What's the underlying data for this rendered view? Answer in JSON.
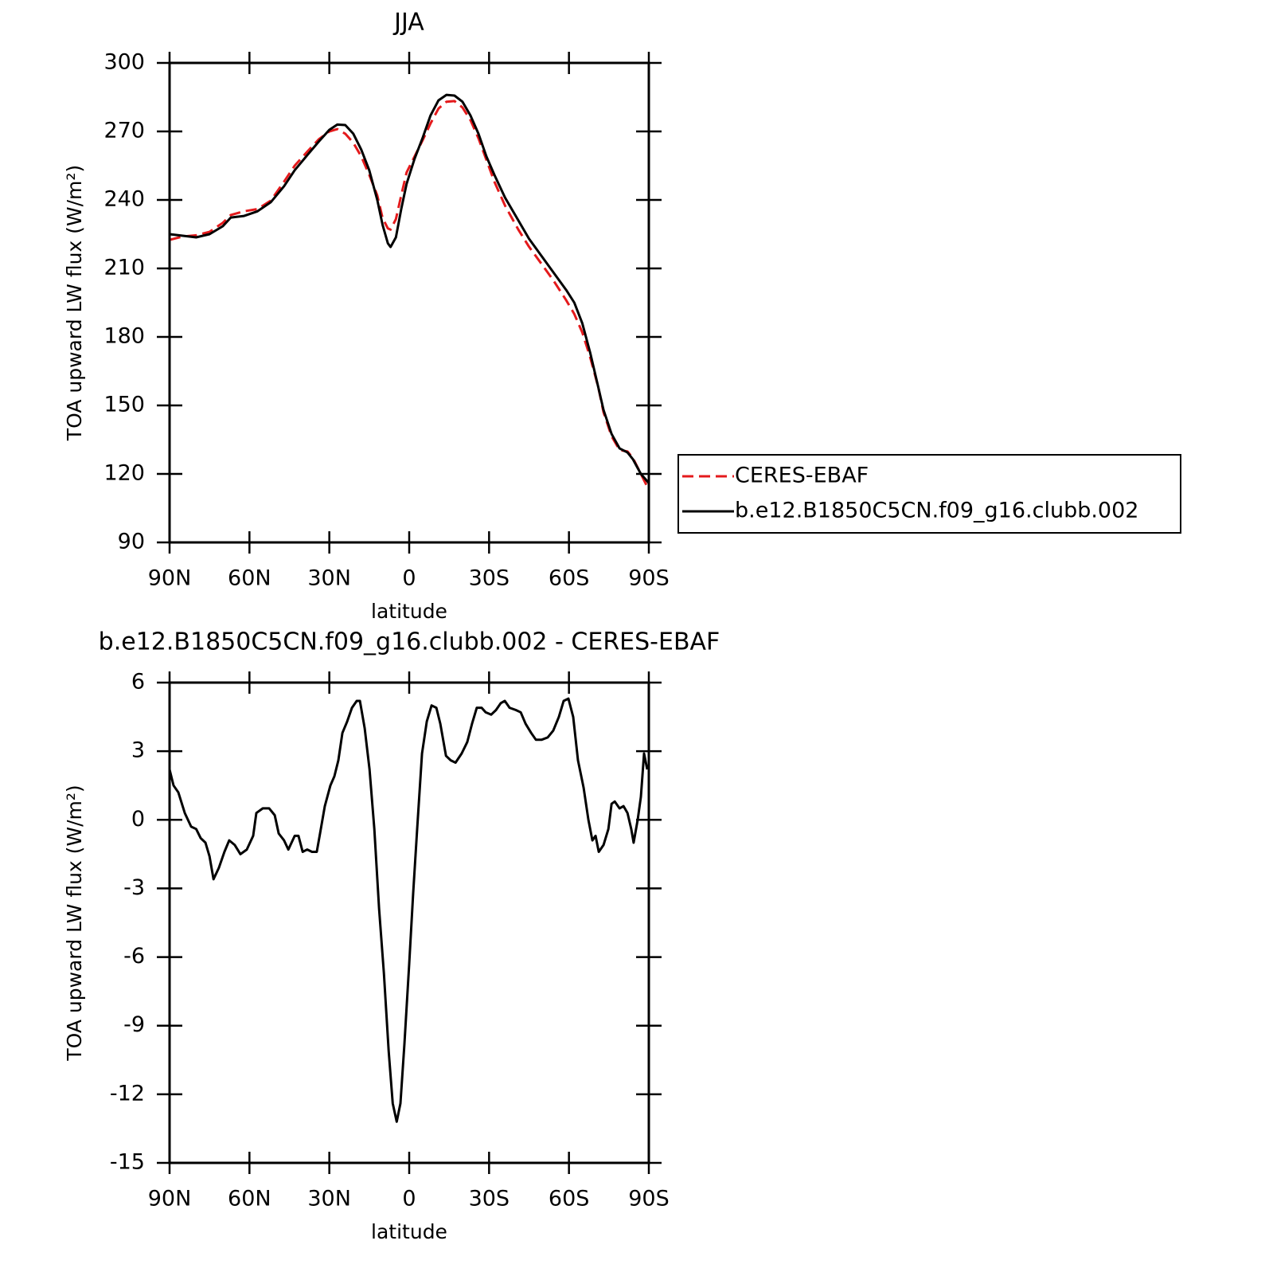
{
  "chart_data": [
    {
      "type": "line",
      "title": "JJA",
      "xlabel": "latitude",
      "ylabel": "TOA upward LW flux (W/m²)",
      "x": [
        90,
        85,
        80,
        75,
        70,
        67,
        62,
        57,
        52,
        47,
        43,
        38,
        34,
        30,
        27,
        24,
        21,
        18,
        15,
        12,
        10,
        8,
        7,
        5,
        3,
        1,
        -2,
        -5,
        -8,
        -11,
        -14,
        -17,
        -20,
        -23,
        -26,
        -29,
        -32,
        -36,
        -41,
        -45,
        -50,
        -54,
        -59,
        -62,
        -65,
        -68,
        -71,
        -73,
        -76,
        -79,
        -82,
        -84,
        -87,
        -90
      ],
      "series": [
        {
          "name": "CERES-EBAF",
          "color": "#e41a1c",
          "linestyle": "dashed",
          "values": [
            222.5,
            224,
            224.5,
            226,
            230,
            233.4,
            235,
            236,
            239.7,
            248,
            255,
            261.5,
            266.5,
            270,
            271,
            269,
            265,
            259,
            251,
            242,
            232,
            227.5,
            227,
            231.6,
            242,
            252,
            259,
            266,
            273.5,
            280,
            283,
            283.3,
            280.5,
            275,
            267,
            257.5,
            248,
            237.5,
            227,
            219.5,
            211.5,
            205,
            196,
            190,
            182,
            171,
            158,
            147,
            136.5,
            130.5,
            129.8,
            127,
            120,
            113
          ]
        },
        {
          "name": "b.e12.B1850C5CN.f09_g16.clubb.002",
          "color": "#000000",
          "linestyle": "solid",
          "values": [
            225,
            224.3,
            223.6,
            225,
            228.5,
            232.3,
            233,
            235,
            239,
            246,
            253,
            260,
            265.5,
            270.7,
            273,
            272.8,
            269,
            262,
            253,
            240,
            229,
            221,
            219.4,
            223.6,
            236,
            247,
            258,
            267,
            277,
            283.6,
            286,
            285.7,
            283,
            277,
            269,
            259,
            251,
            241,
            231,
            223,
            215,
            208.5,
            200.5,
            195,
            186,
            173,
            158,
            148,
            137.5,
            131.2,
            129.4,
            126.5,
            120,
            116
          ]
        }
      ],
      "xlim": [
        90,
        -90
      ],
      "xticks": [
        {
          "value": 90,
          "label": "90N"
        },
        {
          "value": 60,
          "label": "60N"
        },
        {
          "value": 30,
          "label": "30N"
        },
        0,
        {
          "value": -30,
          "label": "30S"
        },
        {
          "value": -60,
          "label": "60S"
        },
        {
          "value": -90,
          "label": "90S"
        }
      ],
      "ylim": [
        90,
        300
      ],
      "yticks": [
        90,
        120,
        150,
        180,
        210,
        240,
        270,
        300
      ],
      "legend": "right"
    },
    {
      "type": "line",
      "title": "b.e12.B1850C5CN.f09_g16.clubb.002 - CERES-EBAF",
      "xlabel": "latitude",
      "ylabel": "TOA upward LW flux (W/m²)",
      "x": [
        90,
        88.5,
        86.7,
        84.3,
        81.9,
        80,
        78.3,
        76.5,
        75,
        73.5,
        71.5,
        69.4,
        67.6,
        65.5,
        63.4,
        61,
        58.6,
        57.4,
        55,
        52.6,
        50.5,
        49,
        47,
        45.4,
        43,
        41.6,
        40,
        38.3,
        36.5,
        34.7,
        33.5,
        31.7,
        29.6,
        28.1,
        26.6,
        25.1,
        23.3,
        21.5,
        19.7,
        18.5,
        16.7,
        14.9,
        13.1,
        11.3,
        9.5,
        7.7,
        6.2,
        4.7,
        3.3,
        1.8,
        0,
        -1.5,
        -3,
        -4.8,
        -6.6,
        -8.4,
        -10.2,
        -11.7,
        -13.8,
        -15.6,
        -17.4,
        -19.7,
        -21.8,
        -23.6,
        -25.4,
        -27.2,
        -28.7,
        -30.8,
        -32.6,
        -34.4,
        -35.9,
        -37.7,
        -40.1,
        -41.9,
        -43.7,
        -45.8,
        -47.6,
        -49.7,
        -52,
        -54.1,
        -56.2,
        -58,
        -59.8,
        -61.6,
        -63.4,
        -65.5,
        -67.3,
        -68.8,
        -70,
        -71.2,
        -73,
        -74.8,
        -76,
        -77.2,
        -79,
        -80.5,
        -82,
        -83.4,
        -84.3,
        -85.8,
        -87,
        -88.2,
        -89.4
      ],
      "values": [
        2.2,
        1.5,
        1.2,
        0.3,
        -0.3,
        -0.4,
        -0.8,
        -1.0,
        -1.6,
        -2.6,
        -2.1,
        -1.4,
        -0.9,
        -1.1,
        -1.5,
        -1.3,
        -0.7,
        0.3,
        0.5,
        0.5,
        0.2,
        -0.6,
        -0.9,
        -1.3,
        -0.7,
        -0.7,
        -1.4,
        -1.3,
        -1.4,
        -1.4,
        -0.6,
        0.6,
        1.5,
        1.9,
        2.6,
        3.8,
        4.3,
        4.9,
        5.2,
        5.2,
        4.0,
        2.2,
        -0.4,
        -3.9,
        -6.7,
        -10.1,
        -12.4,
        -13.2,
        -12.4,
        -9.8,
        -6.3,
        -3.2,
        -0.4,
        2.9,
        4.3,
        5.0,
        4.9,
        4.2,
        2.8,
        2.6,
        2.5,
        2.9,
        3.4,
        4.2,
        4.9,
        4.9,
        4.7,
        4.6,
        4.8,
        5.1,
        5.2,
        4.9,
        4.8,
        4.7,
        4.2,
        3.8,
        3.5,
        3.5,
        3.6,
        3.9,
        4.5,
        5.2,
        5.3,
        4.5,
        2.6,
        1.4,
        0.0,
        -0.9,
        -0.7,
        -1.4,
        -1.1,
        -0.4,
        0.7,
        0.8,
        0.5,
        0.6,
        0.3,
        -0.4,
        -1.0,
        0.0,
        1.0,
        2.9,
        2.2
      ],
      "color": "#000000",
      "xlim": [
        90,
        -90
      ],
      "xticks": [
        {
          "value": 90,
          "label": "90N"
        },
        {
          "value": 60,
          "label": "60N"
        },
        {
          "value": 30,
          "label": "30N"
        },
        0,
        {
          "value": -30,
          "label": "30S"
        },
        {
          "value": -60,
          "label": "60S"
        },
        {
          "value": -90,
          "label": "90S"
        }
      ],
      "ylim": [
        -15,
        6
      ],
      "yticks": [
        -15,
        -12,
        -9,
        -6,
        -3,
        0,
        3,
        6
      ]
    }
  ]
}
